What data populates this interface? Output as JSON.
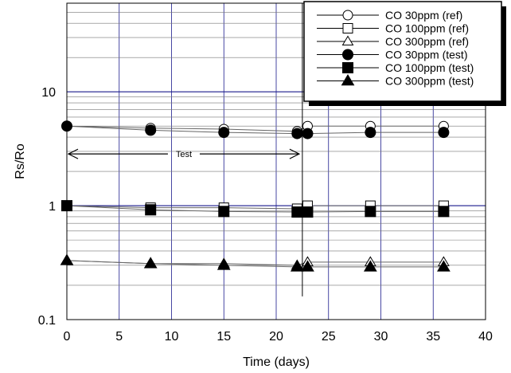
{
  "chart_data": {
    "type": "scatter",
    "title": "",
    "xlabel": "Time (days)",
    "ylabel": "Rs/Ro",
    "x_scale": "linear",
    "y_scale": "log",
    "xlim": [
      0,
      40
    ],
    "ylim": [
      0.1,
      60
    ],
    "x_ticks": [
      "0",
      "5",
      "10",
      "15",
      "20",
      "25",
      "30",
      "35",
      "40"
    ],
    "y_ticks": [
      "0.1",
      "1",
      "10"
    ],
    "grid": true,
    "legend_position": "top-right",
    "colors": {
      "major_grid": "#1a1a8c",
      "minor_grid": "#777777",
      "series_line": "#666666"
    },
    "series": [
      {
        "name": "CO 30ppm (ref)",
        "marker": "circle-open",
        "x": [
          0,
          8,
          15,
          22,
          23,
          29,
          36
        ],
        "y": [
          5.0,
          4.8,
          4.7,
          4.5,
          5.0,
          5.0,
          5.0
        ]
      },
      {
        "name": "CO 100ppm (ref)",
        "marker": "square-open",
        "x": [
          0,
          8,
          15,
          22,
          23,
          29,
          36
        ],
        "y": [
          1.0,
          0.96,
          0.96,
          0.94,
          1.0,
          1.0,
          1.0
        ]
      },
      {
        "name": "CO 300ppm (ref)",
        "marker": "triangle-open",
        "x": [
          0,
          8,
          15,
          22,
          23,
          29,
          36
        ],
        "y": [
          0.33,
          0.31,
          0.31,
          0.3,
          0.32,
          0.32,
          0.32
        ]
      },
      {
        "name": "CO 30ppm (test)",
        "marker": "circle-filled",
        "x": [
          0,
          8,
          15,
          22,
          23,
          29,
          36
        ],
        "y": [
          5.0,
          4.6,
          4.4,
          4.3,
          4.3,
          4.4,
          4.4
        ]
      },
      {
        "name": "CO 100ppm (test)",
        "marker": "square-filled",
        "x": [
          0,
          8,
          15,
          22,
          23,
          29,
          36
        ],
        "y": [
          1.0,
          0.92,
          0.89,
          0.88,
          0.88,
          0.89,
          0.89
        ]
      },
      {
        "name": "CO 300ppm (test)",
        "marker": "triangle-filled",
        "x": [
          0,
          8,
          15,
          22,
          23,
          29,
          36
        ],
        "y": [
          0.33,
          0.31,
          0.3,
          0.29,
          0.29,
          0.29,
          0.29
        ]
      }
    ],
    "annotations": [
      {
        "text": "Test",
        "type": "double-arrow",
        "x_start": 0,
        "x_end": 22.5,
        "y": 2.85
      },
      {
        "type": "vertical-line",
        "x": 22.5,
        "y_range": [
          0.16,
          60
        ]
      }
    ]
  }
}
